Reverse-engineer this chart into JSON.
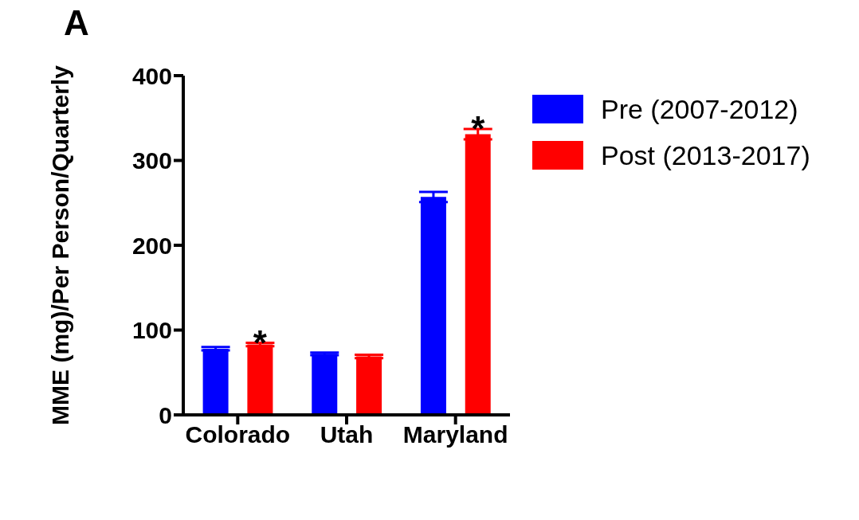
{
  "chart_data": {
    "type": "bar",
    "ylabel": "MME (mg)/Per Person/Quarterly",
    "categories": [
      "Colorado",
      "Utah",
      "Maryland"
    ],
    "series": [
      {
        "name": "Pre (2007-2012)",
        "color": "#0000ff",
        "values": [
          78,
          72,
          257
        ],
        "errors": [
          2,
          1.5,
          6
        ]
      },
      {
        "name": "Post (2013-2017)",
        "color": "#ff0000",
        "values": [
          83,
          69,
          331
        ],
        "errors": [
          2,
          2,
          6
        ],
        "value_labels": [
          "*",
          null,
          "*"
        ]
      }
    ],
    "ylim": [
      0,
      400
    ],
    "yticks": [
      0,
      100,
      200,
      300,
      400
    ],
    "grid": false,
    "legend": "top right",
    "annotations": [
      "A"
    ]
  }
}
